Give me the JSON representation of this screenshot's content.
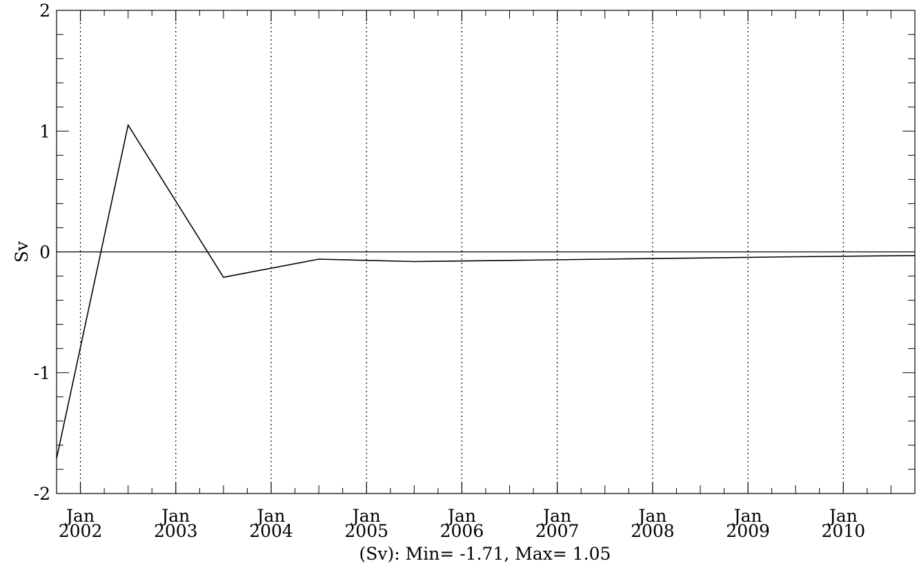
{
  "chart_data": {
    "type": "line",
    "title": "",
    "ylabel": "Sv",
    "xlabel": "(Sv): Min= -1.71, Max= 1.05",
    "x_unit": "year",
    "xlim": [
      2001.75,
      2010.75
    ],
    "ylim": [
      -2,
      2
    ],
    "yticks": [
      2,
      1,
      0,
      -1,
      -2
    ],
    "ytick_labels": [
      "2",
      "1",
      "0",
      "-1",
      "-2"
    ],
    "xticks": [
      {
        "x": 2002,
        "month": "Jan",
        "year": "2002"
      },
      {
        "x": 2003,
        "month": "Jan",
        "year": "2003"
      },
      {
        "x": 2004,
        "month": "Jan",
        "year": "2004"
      },
      {
        "x": 2005,
        "month": "Jan",
        "year": "2005"
      },
      {
        "x": 2006,
        "month": "Jan",
        "year": "2006"
      },
      {
        "x": 2007,
        "month": "Jan",
        "year": "2007"
      },
      {
        "x": 2008,
        "month": "Jan",
        "year": "2008"
      },
      {
        "x": 2009,
        "month": "Jan",
        "year": "2009"
      },
      {
        "x": 2010,
        "month": "Jan",
        "year": "2010"
      }
    ],
    "grid": "vertical dotted at Jan ticks",
    "zero_line": true,
    "series": [
      {
        "x": [
          2001.75,
          2002.5,
          2003.5,
          2004.5,
          2005.5,
          2006.5,
          2007.5,
          2008.5,
          2009.5,
          2010.75
        ],
        "y": [
          -1.71,
          1.05,
          -0.21,
          -0.06,
          -0.08,
          -0.07,
          -0.06,
          -0.05,
          -0.04,
          -0.03
        ]
      }
    ]
  }
}
